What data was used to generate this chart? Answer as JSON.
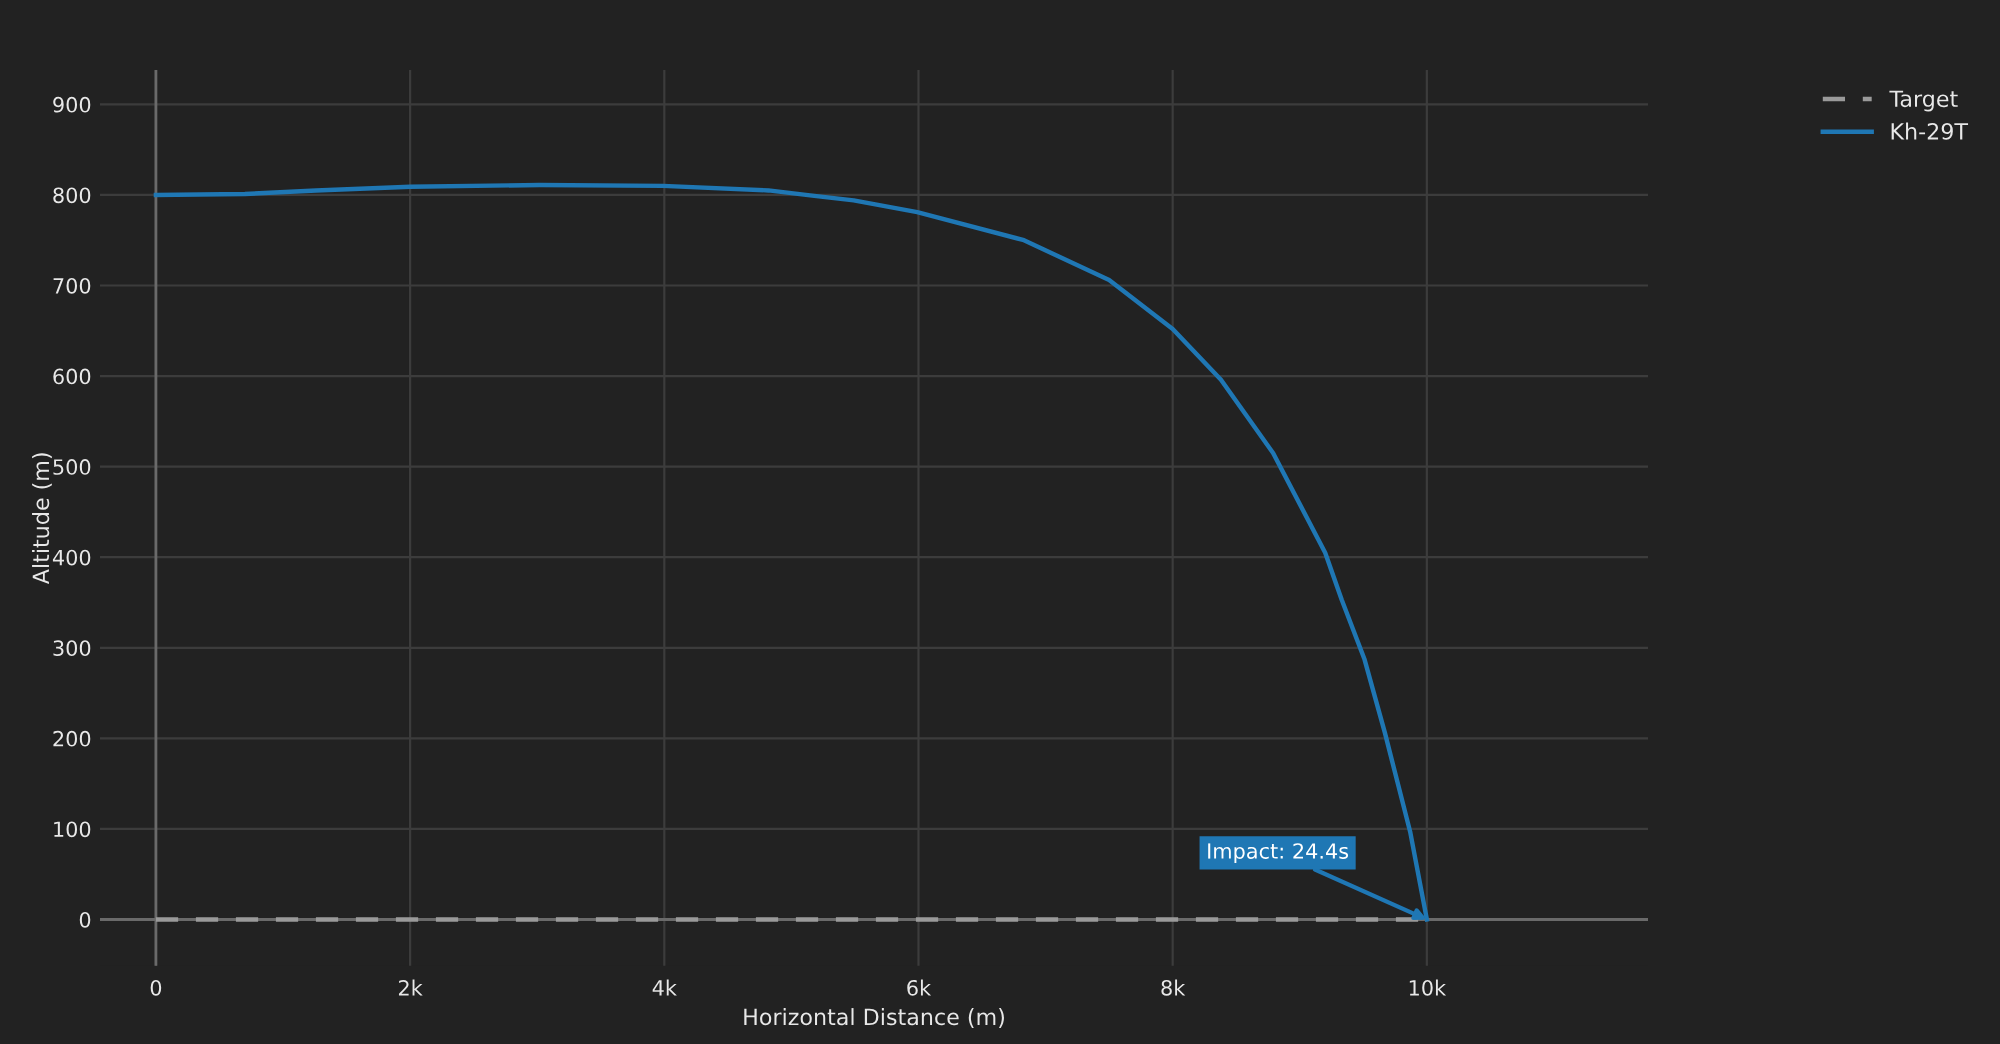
{
  "chart_data": {
    "type": "line",
    "xlabel": "Horizontal Distance (m)",
    "ylabel": "Altitude (m)",
    "xlim": [
      -440,
      11740
    ],
    "ylim": [
      -51,
      938
    ],
    "xticks": [
      0,
      {
        "value": 2000,
        "label": "2k"
      },
      {
        "value": 4000,
        "label": "4k"
      },
      {
        "value": 6000,
        "label": "6k"
      },
      {
        "value": 8000,
        "label": "8k"
      },
      {
        "value": 10000,
        "label": "10k"
      }
    ],
    "yticks": [
      0,
      100,
      200,
      300,
      400,
      500,
      600,
      700,
      800,
      900
    ],
    "grid": true,
    "legend": "top right",
    "series": [
      {
        "name": "Target",
        "color": "#9a9a9a",
        "line_style": "dashed",
        "x": [
          0,
          10000
        ],
        "values": [
          0,
          0
        ]
      },
      {
        "name": "Kh-29T",
        "color": "#1f77b4",
        "line_style": "solid",
        "x": [
          0,
          700,
          1260,
          2000,
          3020,
          3990,
          4820,
          5180,
          5490,
          5990,
          6830,
          7500,
          8000,
          8380,
          8790,
          9200,
          9330,
          9510,
          9670,
          9870,
          10000
        ],
        "values": [
          800,
          801,
          805,
          809,
          811,
          810,
          805,
          799,
          794,
          781,
          750,
          706,
          652,
          596,
          515,
          405,
          353,
          287,
          206,
          96,
          0
        ]
      }
    ],
    "annotations": [
      {
        "text": "Impact: 24.4s",
        "x": 10000,
        "y": 0
      }
    ]
  }
}
